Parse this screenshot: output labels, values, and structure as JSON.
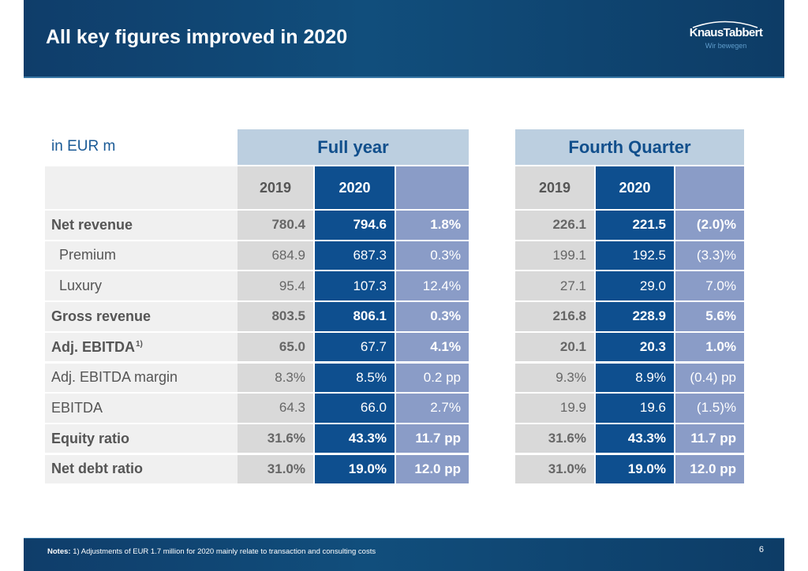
{
  "header": {
    "title": "All key figures improved in 2020",
    "logo": {
      "name": "KnausTabbert",
      "tagline": "Wir bewegen"
    }
  },
  "table": {
    "unit_label": "in EUR m",
    "groups": {
      "full_year": {
        "title": "Full year",
        "col_2019": "2019",
        "col_2020": "2020",
        "col_delta": ""
      },
      "fourth_quarter": {
        "title": "Fourth Quarter",
        "col_2019": "2019",
        "col_2020": "2020",
        "col_delta": ""
      }
    },
    "rows": [
      {
        "label": "Net revenue",
        "footnote": "",
        "fy_2019": "780.4",
        "fy_2020": "794.6",
        "fy_delta": "1.8%",
        "q4_2019": "226.1",
        "q4_2020": "221.5",
        "q4_delta": "(2.0)%"
      },
      {
        "label": "Premium",
        "footnote": "",
        "fy_2019": "684.9",
        "fy_2020": "687.3",
        "fy_delta": "0.3%",
        "q4_2019": "199.1",
        "q4_2020": "192.5",
        "q4_delta": "(3.3)%"
      },
      {
        "label": "Luxury",
        "footnote": "",
        "fy_2019": "95.4",
        "fy_2020": "107.3",
        "fy_delta": "12.4%",
        "q4_2019": "27.1",
        "q4_2020": "29.0",
        "q4_delta": "7.0%"
      },
      {
        "label": "Gross revenue",
        "footnote": "",
        "fy_2019": "803.5",
        "fy_2020": "806.1",
        "fy_delta": "0.3%",
        "q4_2019": "216.8",
        "q4_2020": "228.9",
        "q4_delta": "5.6%"
      },
      {
        "label": "Adj. EBITDA",
        "footnote": "1)",
        "fy_2019": "65.0",
        "fy_2020": "67.7",
        "fy_delta": "4.1%",
        "q4_2019": "20.1",
        "q4_2020": "20.3",
        "q4_delta": "1.0%"
      },
      {
        "label": "Adj. EBITDA margin",
        "footnote": "",
        "fy_2019": "8.3%",
        "fy_2020": "8.5%",
        "fy_delta": "0.2 pp",
        "q4_2019": "9.3%",
        "q4_2020": "8.9%",
        "q4_delta": "(0.4) pp"
      },
      {
        "label": "EBITDA",
        "footnote": "",
        "fy_2019": "64.3",
        "fy_2020": "66.0",
        "fy_delta": "2.7%",
        "q4_2019": "19.9",
        "q4_2020": "19.6",
        "q4_delta": "(1.5)%"
      },
      {
        "label": "Equity ratio",
        "footnote": "",
        "fy_2019": "31.6%",
        "fy_2020": "43.3%",
        "fy_delta": "11.7 pp",
        "q4_2019": "31.6%",
        "q4_2020": "43.3%",
        "q4_delta": "11.7 pp"
      },
      {
        "label": "Net debt ratio",
        "footnote": "",
        "fy_2019": "31.0%",
        "fy_2020": "19.0%",
        "fy_delta": "12.0 pp",
        "q4_2019": "31.0%",
        "q4_2020": "19.0%",
        "q4_delta": "12.0 pp"
      }
    ]
  },
  "footer": {
    "notes_label": "Notes:",
    "notes_text": "1) Adjustments of EUR 1.7 million for 2020 mainly relate to transaction and consulting costs",
    "page_number": "6"
  },
  "colors": {
    "header_band": "#114e7c",
    "group_header_bg": "#bccfe0",
    "group_header_text": "#114f8c",
    "col_2019": "#d9d9d9",
    "col_2020": "#0e4f8f",
    "col_delta": "#8a9cc7",
    "label_bg": "#f0f0f0"
  }
}
